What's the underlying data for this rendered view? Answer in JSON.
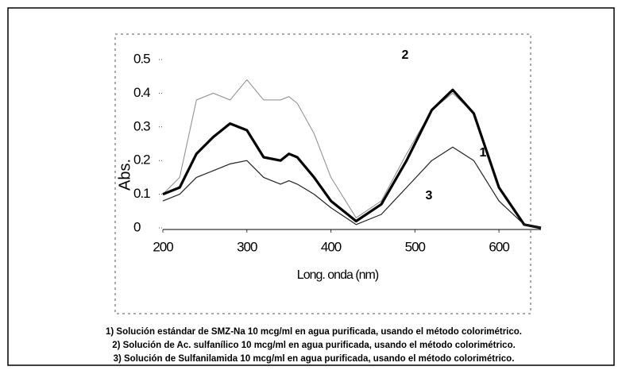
{
  "chart_data": {
    "type": "line",
    "y_label": "Abs.",
    "x_label": "Long. onda (nm)",
    "x": [
      200,
      220,
      240,
      260,
      280,
      300,
      320,
      340,
      350,
      360,
      380,
      400,
      430,
      460,
      490,
      520,
      545,
      570,
      600,
      630,
      650
    ],
    "series": [
      {
        "name": "1",
        "color": "#8a8a8a",
        "values": [
          0.1,
          0.15,
          0.38,
          0.4,
          0.38,
          0.44,
          0.38,
          0.38,
          0.39,
          0.37,
          0.28,
          0.15,
          0.03,
          0.08,
          0.22,
          0.35,
          0.4,
          0.34,
          0.12,
          0.01,
          0
        ]
      },
      {
        "name": "2",
        "color": "#000000",
        "values": [
          0.1,
          0.12,
          0.22,
          0.27,
          0.31,
          0.29,
          0.21,
          0.2,
          0.22,
          0.21,
          0.15,
          0.08,
          0.02,
          0.07,
          0.2,
          0.35,
          0.41,
          0.34,
          0.12,
          0.01,
          0
        ]
      },
      {
        "name": "3",
        "color": "#222222",
        "values": [
          0.08,
          0.1,
          0.15,
          0.17,
          0.19,
          0.2,
          0.15,
          0.13,
          0.14,
          0.13,
          0.1,
          0.06,
          0.01,
          0.04,
          0.12,
          0.2,
          0.24,
          0.2,
          0.08,
          0.01,
          0
        ]
      }
    ],
    "xlim": [
      200,
      650
    ],
    "xticks": [
      200,
      300,
      400,
      500,
      600
    ],
    "ylim": [
      0,
      0.5
    ],
    "yticks": [
      0,
      0.1,
      0.2,
      0.3,
      0.4,
      0.5
    ],
    "captions": [
      "1) Solución estándar de SMZ-Na 10 mcg/ml en agua purificada, usando el método colorimétrico.",
      "2) Solución de Ac. sulfanílico 10 mcg/ml en agua purificada, usando el método colorimétrico.",
      "3) Solución de Sulfanilamida 10 mcg/ml en agua purificada, usando el método colorimétrico."
    ]
  }
}
